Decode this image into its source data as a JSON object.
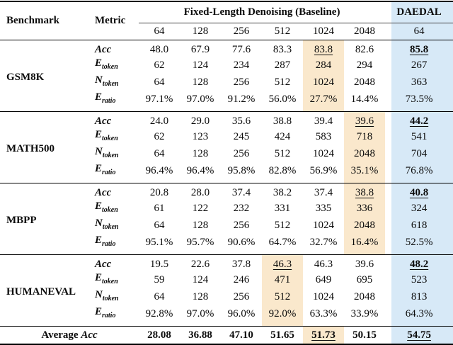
{
  "header": {
    "benchmark": "Benchmark",
    "metric": "Metric",
    "baseline_group": "Fixed-Length Denoising (Baseline)",
    "daedal": "DAEDAL",
    "baseline_lengths": [
      "64",
      "128",
      "256",
      "512",
      "1024",
      "2048"
    ],
    "daedal_length": "64"
  },
  "metrics": [
    {
      "main": "Acc",
      "sub": ""
    },
    {
      "main": "E",
      "sub": "token"
    },
    {
      "main": "N",
      "sub": "token"
    },
    {
      "main": "E",
      "sub": "ratio"
    }
  ],
  "colors": {
    "highlight_orange": "#fae8cc",
    "highlight_blue": "#d7e9f7"
  },
  "chart_data": {
    "type": "table",
    "title": "Fixed-Length Denoising (Baseline) vs DAEDAL",
    "benchmarks": [
      {
        "name": "GSM8K",
        "best_baseline_col": 4,
        "rows": [
          [
            "48.0",
            "67.9",
            "77.6",
            "83.3",
            "83.8",
            "82.6",
            "85.8"
          ],
          [
            "62",
            "124",
            "234",
            "287",
            "284",
            "294",
            "267"
          ],
          [
            "64",
            "128",
            "256",
            "512",
            "1024",
            "2048",
            "363"
          ],
          [
            "97.1%",
            "97.0%",
            "91.2%",
            "56.0%",
            "27.7%",
            "14.4%",
            "73.5%"
          ]
        ]
      },
      {
        "name": "MATH500",
        "best_baseline_col": 5,
        "rows": [
          [
            "24.0",
            "29.0",
            "35.6",
            "38.8",
            "39.4",
            "39.6",
            "44.2"
          ],
          [
            "62",
            "123",
            "245",
            "424",
            "583",
            "718",
            "541"
          ],
          [
            "64",
            "128",
            "256",
            "512",
            "1024",
            "2048",
            "704"
          ],
          [
            "96.4%",
            "96.4%",
            "95.8%",
            "82.8%",
            "56.9%",
            "35.1%",
            "76.8%"
          ]
        ]
      },
      {
        "name": "MBPP",
        "best_baseline_col": 5,
        "rows": [
          [
            "20.8",
            "28.0",
            "37.4",
            "38.2",
            "37.4",
            "38.8",
            "40.8"
          ],
          [
            "61",
            "122",
            "232",
            "331",
            "335",
            "336",
            "324"
          ],
          [
            "64",
            "128",
            "256",
            "512",
            "1024",
            "2048",
            "618"
          ],
          [
            "95.1%",
            "95.7%",
            "90.6%",
            "64.7%",
            "32.7%",
            "16.4%",
            "52.5%"
          ]
        ]
      },
      {
        "name": "HUMANEVAL",
        "best_baseline_col": 3,
        "rows": [
          [
            "19.5",
            "22.6",
            "37.8",
            "46.3",
            "46.3",
            "39.6",
            "48.2"
          ],
          [
            "59",
            "124",
            "246",
            "471",
            "649",
            "695",
            "523"
          ],
          [
            "64",
            "128",
            "256",
            "512",
            "1024",
            "2048",
            "813"
          ],
          [
            "92.8%",
            "97.0%",
            "96.0%",
            "92.0%",
            "63.3%",
            "33.9%",
            "64.3%"
          ]
        ]
      }
    ],
    "average": {
      "label": "Average",
      "label_metric": "Acc",
      "best_baseline_col": 4,
      "values": [
        "28.08",
        "36.88",
        "47.10",
        "51.65",
        "51.73",
        "50.15",
        "54.75"
      ]
    }
  }
}
